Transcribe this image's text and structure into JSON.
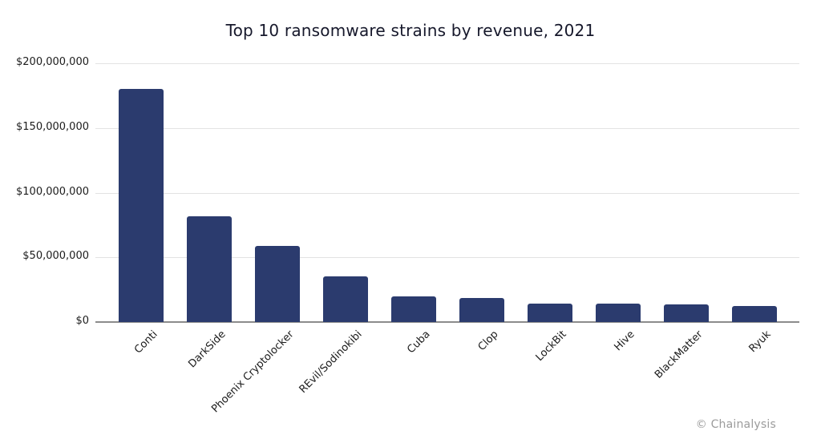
{
  "title": "Top 10 ransomware strains by revenue, 2021",
  "source_credit": "© Chainalysis",
  "colors": {
    "bar": "#2b3b6e",
    "gridline": "#e3e3e3",
    "baseline": "#8c8c8c",
    "title_text": "#16182b",
    "tick_text": "#1c1c1c",
    "source_text": "#9b9b9b",
    "background": "#ffffff"
  },
  "chart_data": {
    "type": "bar",
    "title": "Top 10 ransomware strains by revenue, 2021",
    "categories": [
      "Conti",
      "DarkSide",
      "Phoenix Cryptolocker",
      "REvil/Sodinokibi",
      "Cuba",
      "Clop",
      "LockBit",
      "Hive",
      "BlackMatter",
      "Ryuk"
    ],
    "values": [
      180000000,
      82000000,
      59000000,
      35000000,
      20000000,
      18500000,
      14500000,
      14000000,
      13500000,
      12500000
    ],
    "xlabel": "",
    "ylabel": "",
    "ylim": [
      0,
      200000000
    ],
    "yticks": [
      {
        "value": 0,
        "label": "$0"
      },
      {
        "value": 50000000,
        "label": "$50,000,000"
      },
      {
        "value": 100000000,
        "label": "$100,000,000"
      },
      {
        "value": 150000000,
        "label": "$150,000,000"
      },
      {
        "value": 200000000,
        "label": "$200,000,000"
      }
    ],
    "grid": true,
    "legend": false,
    "bar_color": "#2b3b6e",
    "annotations": [
      "© Chainalysis"
    ]
  }
}
